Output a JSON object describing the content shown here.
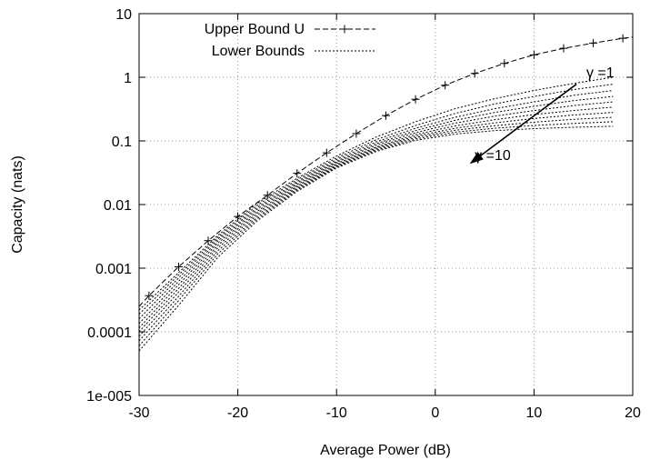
{
  "chart_data": {
    "type": "line",
    "xlabel": "Average Power (dB)",
    "ylabel": "Capacity (nats)",
    "x_scale": "linear",
    "y_scale": "log",
    "xlim": [
      -30,
      20
    ],
    "ylim": [
      1e-05,
      10
    ],
    "grid": true,
    "legend_position": "top-left",
    "x_ticks": [
      {
        "value": -30,
        "label": "-30"
      },
      {
        "value": -20,
        "label": "-20"
      },
      {
        "value": -10,
        "label": "-10"
      },
      {
        "value": 0,
        "label": "0"
      },
      {
        "value": 10,
        "label": "10"
      },
      {
        "value": 20,
        "label": "20"
      }
    ],
    "y_ticks": [
      {
        "value": 1e-05,
        "label": "1e-005"
      },
      {
        "value": 0.0001,
        "label": "0.0001"
      },
      {
        "value": 0.001,
        "label": "0.001"
      },
      {
        "value": 0.01,
        "label": "0.01"
      },
      {
        "value": 0.1,
        "label": "0.1"
      },
      {
        "value": 1,
        "label": "1"
      },
      {
        "value": 10,
        "label": "10"
      }
    ],
    "upper_bound": {
      "name": "Upper Bound U",
      "style": "dashed-with-plus-markers",
      "x": [
        -30,
        -29,
        -26,
        -23,
        -20,
        -17,
        -14,
        -11,
        -8,
        -5,
        -2,
        1,
        4,
        7,
        10,
        13,
        16,
        19,
        20
      ],
      "y": [
        0.00025,
        0.00037,
        0.00105,
        0.0027,
        0.0065,
        0.014,
        0.031,
        0.065,
        0.13,
        0.25,
        0.45,
        0.75,
        1.15,
        1.65,
        2.25,
        2.85,
        3.45,
        4.1,
        4.3
      ]
    },
    "lower_bounds": {
      "name": "Lower Bounds",
      "style": "dotted",
      "x": [
        -30,
        -26,
        -22,
        -18,
        -14,
        -10,
        -6,
        -2,
        2,
        6,
        10,
        14,
        18
      ],
      "series": [
        {
          "gamma": 1,
          "y": [
            0.00022,
            0.00085,
            0.0033,
            0.0105,
            0.026,
            0.058,
            0.115,
            0.2,
            0.32,
            0.46,
            0.62,
            0.8,
            1.0
          ]
        },
        {
          "gamma": 2,
          "y": [
            0.00019,
            0.00078,
            0.0031,
            0.0098,
            0.0245,
            0.054,
            0.104,
            0.175,
            0.27,
            0.38,
            0.5,
            0.64,
            0.78
          ]
        },
        {
          "gamma": 3,
          "y": [
            0.00016,
            0.0007,
            0.0029,
            0.0091,
            0.023,
            0.051,
            0.096,
            0.158,
            0.235,
            0.32,
            0.41,
            0.52,
            0.62
          ]
        },
        {
          "gamma": 4,
          "y": [
            0.000135,
            0.00062,
            0.0027,
            0.0085,
            0.0218,
            0.048,
            0.09,
            0.145,
            0.21,
            0.28,
            0.35,
            0.43,
            0.5
          ]
        },
        {
          "gamma": 5,
          "y": [
            0.000115,
            0.00055,
            0.0025,
            0.0079,
            0.0206,
            0.046,
            0.085,
            0.135,
            0.19,
            0.245,
            0.3,
            0.36,
            0.41
          ]
        },
        {
          "gamma": 6,
          "y": [
            0.0001,
            0.00048,
            0.0023,
            0.0074,
            0.0196,
            0.044,
            0.08,
            0.126,
            0.172,
            0.215,
            0.26,
            0.3,
            0.34
          ]
        },
        {
          "gamma": 7,
          "y": [
            8.5e-05,
            0.00042,
            0.0021,
            0.0069,
            0.0186,
            0.042,
            0.077,
            0.119,
            0.158,
            0.192,
            0.225,
            0.255,
            0.28
          ]
        },
        {
          "gamma": 8,
          "y": [
            7.2e-05,
            0.00036,
            0.0019,
            0.0064,
            0.0177,
            0.0405,
            0.074,
            0.113,
            0.147,
            0.173,
            0.197,
            0.218,
            0.235
          ]
        },
        {
          "gamma": 9,
          "y": [
            6e-05,
            0.00031,
            0.0017,
            0.006,
            0.0169,
            0.039,
            0.071,
            0.107,
            0.137,
            0.158,
            0.175,
            0.188,
            0.2
          ]
        },
        {
          "gamma": 10,
          "y": [
            5e-05,
            0.00026,
            0.0015,
            0.0056,
            0.0161,
            0.0375,
            0.068,
            0.102,
            0.128,
            0.145,
            0.156,
            0.164,
            0.17
          ]
        }
      ]
    },
    "annotations": [
      {
        "text": "γ =1",
        "x": 15.3,
        "y": 1.0
      },
      {
        "text": "γ =10",
        "x": 4.0,
        "y": 0.05
      }
    ],
    "arrow": {
      "from": [
        14.3,
        0.78
      ],
      "to": [
        3.6,
        0.045
      ]
    }
  }
}
